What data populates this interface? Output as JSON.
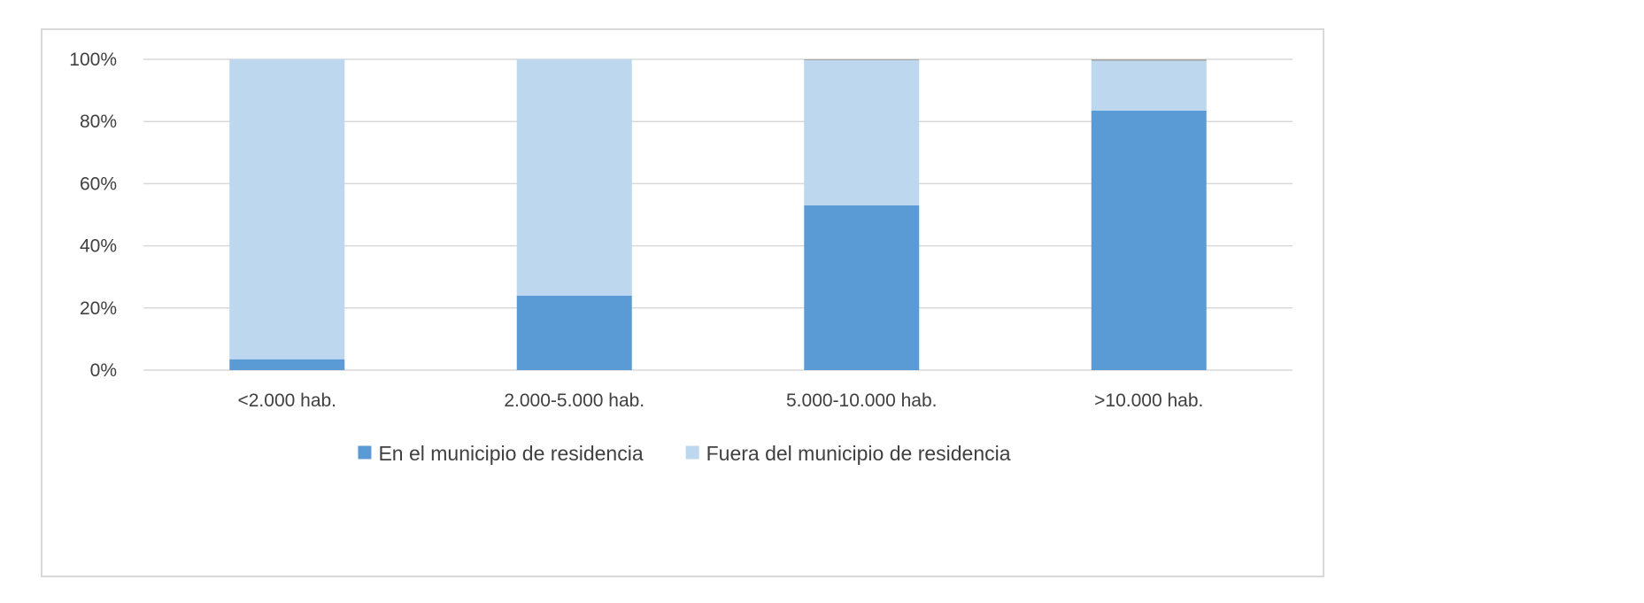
{
  "chart_data": {
    "type": "bar",
    "stacked": true,
    "categories": [
      "<2.000 hab.",
      "2.000-5.000 hab.",
      "5.000-10.000 hab.",
      ">10.000 hab."
    ],
    "series": [
      {
        "name": "En el municipio de residencia",
        "color": "#5b9bd5",
        "values": [
          3.5,
          24,
          53,
          83.5
        ]
      },
      {
        "name": "Fuera del municipio de residencia",
        "color": "#bdd7ee",
        "values": [
          96.5,
          76,
          46.7,
          16
        ]
      },
      {
        "name": "",
        "color": "#a5a5a5",
        "values": [
          0,
          0,
          0.3,
          0.5
        ]
      }
    ],
    "y_ticks": [
      "0%",
      "20%",
      "40%",
      "60%",
      "80%",
      "100%"
    ],
    "ylim": [
      0,
      100
    ],
    "grid": true,
    "legend_position": "bottom",
    "title": "",
    "xlabel": "",
    "ylabel": ""
  }
}
